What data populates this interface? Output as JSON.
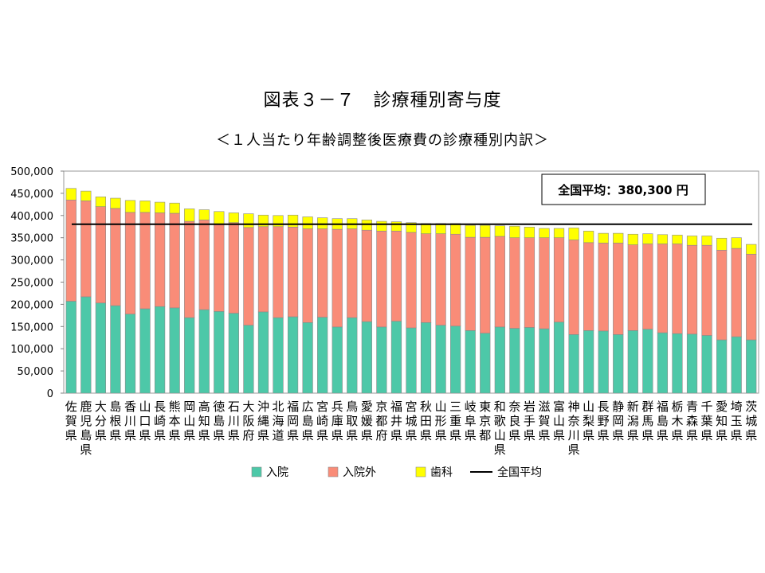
{
  "title": "図表３－７　診療種別寄与度",
  "subtitle": "＜１人当たり年齢調整後医療費の診療種別内訳＞",
  "average_label": "全国平均：380,300 円",
  "chart_data": {
    "type": "bar",
    "stacked": true,
    "categories": [
      "佐賀県",
      "鹿児島県",
      "大分県",
      "島根県",
      "香川県",
      "山口県",
      "長崎県",
      "熊本県",
      "岡山県",
      "高知県",
      "徳島県",
      "石川県",
      "大阪府",
      "沖縄県",
      "北海道",
      "福岡県",
      "広島県",
      "宮崎県",
      "兵庫県",
      "鳥取県",
      "愛媛県",
      "京都府",
      "福井県",
      "宮城県",
      "秋田県",
      "山形県",
      "三重県",
      "岐阜県",
      "東京都",
      "和歌山県",
      "奈良県",
      "岩手県",
      "滋賀県",
      "富山県",
      "神奈川県",
      "山梨県",
      "長野県",
      "静岡県",
      "新潟県",
      "群馬県",
      "福島県",
      "栃木県",
      "青森県",
      "千葉県",
      "愛知県",
      "埼玉県",
      "茨城県"
    ],
    "series": [
      {
        "name": "入院",
        "color": "#4dc8a8",
        "values": [
          207000,
          217000,
          203000,
          197000,
          178000,
          190000,
          195000,
          192000,
          170000,
          188000,
          184000,
          180000,
          153000,
          183000,
          170000,
          172000,
          159000,
          171000,
          149000,
          170000,
          161000,
          149000,
          162000,
          147000,
          159000,
          153000,
          151000,
          141000,
          135000,
          149000,
          146000,
          148000,
          145000,
          160000,
          132000,
          141000,
          140000,
          132000,
          141000,
          144000,
          136000,
          134000,
          133000,
          130000,
          120000,
          127000,
          120000
        ]
      },
      {
        "name": "入院外",
        "color": "#f98c78",
        "values": [
          228000,
          216000,
          217000,
          219000,
          229000,
          217000,
          211000,
          213000,
          217000,
          202000,
          197000,
          204000,
          220000,
          192000,
          205000,
          202000,
          211000,
          199000,
          220000,
          200000,
          206000,
          216000,
          203000,
          215000,
          200000,
          206000,
          207000,
          210000,
          216000,
          204000,
          204000,
          202000,
          205000,
          190000,
          213000,
          198000,
          198000,
          206000,
          193000,
          192000,
          200000,
          202000,
          200000,
          203000,
          202000,
          199000,
          193000
        ]
      },
      {
        "name": "歯科",
        "color": "#ffff00",
        "values": [
          26000,
          22000,
          22000,
          23000,
          27000,
          26000,
          24000,
          23000,
          28000,
          23000,
          28000,
          22000,
          31000,
          26000,
          25000,
          27000,
          27000,
          25000,
          24000,
          23000,
          23000,
          22000,
          21000,
          22000,
          23000,
          23000,
          24000,
          27000,
          27000,
          24000,
          26000,
          24000,
          21000,
          21000,
          27000,
          26000,
          22000,
          22000,
          24000,
          23000,
          21000,
          20000,
          21000,
          21000,
          27000,
          24000,
          22000
        ]
      }
    ],
    "average": {
      "name": "全国平均",
      "value": 380300,
      "color": "#000000"
    },
    "ylim": [
      0,
      500000
    ],
    "yticks": [
      "0",
      "50,000",
      "100,000",
      "150,000",
      "200,000",
      "250,000",
      "300,000",
      "350,000",
      "400,000",
      "450,000",
      "500,000"
    ],
    "legend_position": "bottom",
    "grid": false
  }
}
